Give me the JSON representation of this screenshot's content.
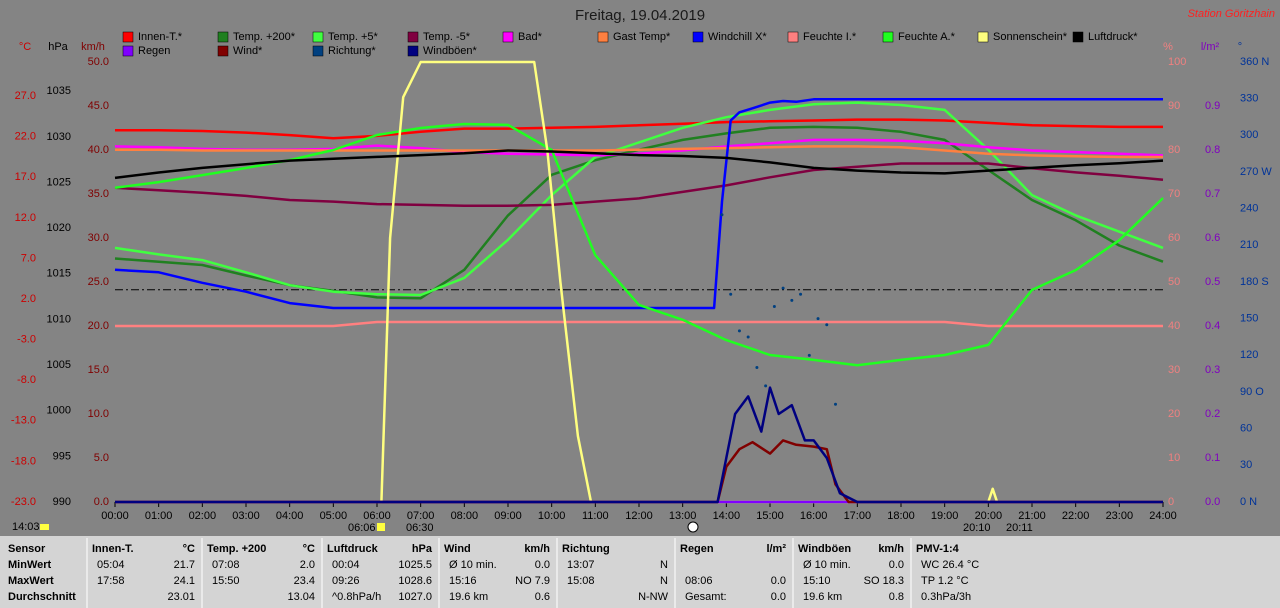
{
  "chart_data": {
    "type": "line",
    "title": "Freitag, 19.04.2019",
    "station": "Station Göritzhain",
    "xlim": [
      0,
      24
    ],
    "xticks": [
      {
        "value": 0,
        "label": "00:00"
      },
      {
        "value": 1,
        "label": "01:00"
      },
      {
        "value": 2,
        "label": "02:00"
      },
      {
        "value": 3,
        "label": "03:00"
      },
      {
        "value": 4,
        "label": "04:00"
      },
      {
        "value": 5,
        "label": "05:00"
      },
      {
        "value": 6,
        "label": "06:00"
      },
      {
        "value": 7,
        "label": "07:00"
      },
      {
        "value": 8,
        "label": "08:00"
      },
      {
        "value": 9,
        "label": "09:00"
      },
      {
        "value": 10,
        "label": "10:00"
      },
      {
        "value": 11,
        "label": "11:00"
      },
      {
        "value": 12,
        "label": "12:00"
      },
      {
        "value": 13,
        "label": "13:00"
      },
      {
        "value": 14,
        "label": "14:00"
      },
      {
        "value": 15,
        "label": "15:00"
      },
      {
        "value": 16,
        "label": "16:00"
      },
      {
        "value": 17,
        "label": "17:00"
      },
      {
        "value": 18,
        "label": "18:00"
      },
      {
        "value": 19,
        "label": "19:00"
      },
      {
        "value": 20,
        "label": "20:00"
      },
      {
        "value": 21,
        "label": "21:00"
      },
      {
        "value": 22,
        "label": "22:00"
      },
      {
        "value": 23,
        "label": "23:00"
      },
      {
        "value": 24,
        "label": "24:00"
      }
    ],
    "x": [
      0,
      1,
      2,
      3,
      4,
      5,
      6,
      7,
      8,
      9,
      10,
      11,
      12,
      13,
      14,
      15,
      16,
      17,
      18,
      19,
      20,
      21,
      22,
      23,
      24
    ],
    "axes": [
      {
        "unit": "°C",
        "side": "left",
        "color": "#cc0000",
        "ylim": [
          -23,
          31.2
        ],
        "yticks": [
          {
            "value": 27,
            "label": "27.0"
          },
          {
            "value": 22,
            "label": "22.0"
          },
          {
            "value": 17,
            "label": "17.0"
          },
          {
            "value": 12,
            "label": "12.0"
          },
          {
            "value": 7,
            "label": "7.0"
          },
          {
            "value": 2,
            "label": "2.0"
          },
          {
            "value": -3,
            "label": "-3.0"
          },
          {
            "value": -8,
            "label": "-8.0"
          },
          {
            "value": -13,
            "label": "-13.0"
          },
          {
            "value": -18,
            "label": "-18.0"
          },
          {
            "value": -23,
            "label": "-23.0"
          }
        ]
      },
      {
        "unit": "hPa",
        "side": "left",
        "color": "#000000",
        "ylim": [
          990,
          1038.2
        ],
        "yticks": [
          1035,
          1030,
          1025,
          1020,
          1015,
          1010,
          1005,
          1000,
          995,
          990
        ]
      },
      {
        "unit": "km/h",
        "side": "left",
        "color": "#800000",
        "ylim": [
          0,
          50
        ],
        "yticks": [
          {
            "value": 50,
            "label": "50.0"
          },
          {
            "value": 45,
            "label": "45.0"
          },
          {
            "value": 40,
            "label": "40.0"
          },
          {
            "value": 35,
            "label": "35.0"
          },
          {
            "value": 30,
            "label": "30.0"
          },
          {
            "value": 25,
            "label": "25.0"
          },
          {
            "value": 20,
            "label": "20.0"
          },
          {
            "value": 15,
            "label": "15.0"
          },
          {
            "value": 10,
            "label": "10.0"
          },
          {
            "value": 5,
            "label": "5.0"
          },
          {
            "value": 0,
            "label": "0.0"
          }
        ]
      },
      {
        "unit": "%",
        "side": "right",
        "color": "#f08080",
        "ylim": [
          0,
          100
        ],
        "yticks": [
          100,
          90,
          80,
          70,
          60,
          50,
          40,
          30,
          20,
          10,
          0
        ]
      },
      {
        "unit": "l/m²",
        "side": "right",
        "color": "#8000c0",
        "ylim": [
          0,
          1
        ],
        "yticks": [
          0.9,
          0.8,
          0.7,
          0.6,
          0.5,
          0.4,
          0.3,
          0.2,
          0.1,
          {
            "value": 0,
            "label": "0.0"
          }
        ]
      },
      {
        "unit": "°",
        "side": "right",
        "color": "#003399",
        "ylim": [
          0,
          360
        ],
        "yticks": [
          {
            "value": 360,
            "label": "360 N"
          },
          330,
          300,
          {
            "value": 270,
            "label": "270 W"
          },
          240,
          210,
          {
            "value": 180,
            "label": "180 S"
          },
          150,
          120,
          {
            "value": 90,
            "label": "90 O"
          },
          60,
          30,
          {
            "value": 0,
            "label": "0 N"
          }
        ]
      }
    ],
    "reference_line": {
      "axis": 1,
      "value": 1013.25
    },
    "series": [
      {
        "name": "Innen-T.*",
        "color": "#ff0000",
        "axis": 0,
        "values": [
          22.8,
          22.8,
          22.7,
          22.5,
          22.2,
          21.8,
          22.1,
          22.6,
          23.0,
          23.0,
          23.1,
          23.2,
          23.4,
          23.6,
          23.8,
          23.9,
          24.0,
          24.1,
          24.1,
          24.0,
          23.7,
          23.4,
          23.3,
          23.2,
          23.2
        ]
      },
      {
        "name": "Temp. +200*",
        "color": "#208020",
        "axis": 0,
        "values": [
          7.0,
          6.6,
          6.2,
          4.9,
          3.7,
          3.0,
          2.2,
          2.1,
          5.6,
          12.3,
          17.3,
          19.1,
          20.4,
          21.6,
          22.4,
          23.1,
          23.2,
          23.1,
          22.6,
          21.6,
          17.9,
          14.2,
          11.7,
          8.6,
          6.6
        ]
      },
      {
        "name": "Temp. +5*",
        "color": "#40ff40",
        "axis": 0,
        "values": [
          8.3,
          7.5,
          6.8,
          5.3,
          3.7,
          2.9,
          2.6,
          2.5,
          4.6,
          9.3,
          14.8,
          19.5,
          21.3,
          23.1,
          24.4,
          25.3,
          26.0,
          26.2,
          25.9,
          25.3,
          20.4,
          14.8,
          12.3,
          10.3,
          8.3
        ]
      },
      {
        "name": "Temp. -5*",
        "color": "#800040",
        "axis": 0,
        "values": [
          15.7,
          15.4,
          15.1,
          14.7,
          14.2,
          14.0,
          13.7,
          13.6,
          13.5,
          13.5,
          13.6,
          14.0,
          14.4,
          15.2,
          16.0,
          17.0,
          17.9,
          18.3,
          18.7,
          18.7,
          18.7,
          18.1,
          17.6,
          17.2,
          16.7
        ]
      },
      {
        "name": "Bad*",
        "color": "#ff00ff",
        "axis": 0,
        "values": [
          20.8,
          20.7,
          20.5,
          20.4,
          20.4,
          20.5,
          20.9,
          20.6,
          20.1,
          19.9,
          19.8,
          19.7,
          19.9,
          20.3,
          20.8,
          21.2,
          21.6,
          21.6,
          21.5,
          21.2,
          20.7,
          20.3,
          20.1,
          19.9,
          19.7
        ]
      },
      {
        "name": "Gast Temp*",
        "color": "#ff8040",
        "axis": 0,
        "values": [
          20.4,
          20.4,
          20.3,
          20.3,
          20.3,
          20.3,
          20.3,
          20.3,
          20.3,
          20.3,
          20.3,
          20.3,
          20.4,
          20.5,
          20.6,
          20.7,
          20.8,
          20.8,
          20.7,
          20.3,
          19.9,
          19.7,
          19.6,
          19.5,
          19.5
        ]
      },
      {
        "name": "Windchill X*",
        "color": "#0000ff",
        "axis": 0,
        "x": [
          0,
          1,
          2,
          3,
          4,
          5,
          13.72,
          13.9,
          14.1,
          14.3,
          14.6,
          15,
          15.3,
          15.6,
          16,
          24
        ],
        "values": [
          5.6,
          5.3,
          4.0,
          2.9,
          1.5,
          0.9,
          0.9,
          14,
          24.0,
          25.0,
          25.5,
          26.2,
          26.4,
          26.3,
          26.6,
          26.6
        ]
      },
      {
        "name": "Feuchte I.*",
        "color": "#ff8080",
        "axis": 3,
        "values": [
          40,
          40,
          40,
          40,
          40,
          40,
          40.9,
          40.9,
          40.9,
          40.9,
          40.9,
          40.9,
          40.9,
          40.9,
          40.9,
          40.9,
          40.9,
          40.9,
          40.9,
          40.9,
          40,
          40,
          40,
          40,
          40
        ]
      },
      {
        "name": "Feuchte A.*",
        "color": "#20ff20",
        "axis": 3,
        "values": [
          71.4,
          72.7,
          74.3,
          75.9,
          77.7,
          80,
          83.4,
          85,
          85.9,
          85.7,
          80,
          56.1,
          44.8,
          41.4,
          36.8,
          33.4,
          32.3,
          31.1,
          32.3,
          33.4,
          35.7,
          48.2,
          52.7,
          59.5,
          69.1
        ]
      },
      {
        "name": "Sonnenschein*",
        "color": "#ffff80",
        "axis": 3,
        "x": [
          0,
          6.1,
          6.3,
          6.6,
          7.0,
          9.6,
          9.9,
          10.2,
          10.6,
          10.9,
          20.0,
          20.1,
          20.2,
          24
        ],
        "values": [
          0,
          0,
          60,
          92,
          100,
          100,
          80,
          50,
          15,
          0,
          0,
          3,
          0,
          0
        ]
      },
      {
        "name": "Luftdruck*",
        "color": "#000000",
        "axis": 1,
        "values": [
          1025.5,
          1026.1,
          1026.6,
          1027.0,
          1027.4,
          1027.6,
          1027.8,
          1028.0,
          1028.2,
          1028.5,
          1028.4,
          1028.2,
          1028.0,
          1027.9,
          1027.7,
          1027.2,
          1026.6,
          1026.3,
          1026.1,
          1026.0,
          1026.3,
          1026.6,
          1026.9,
          1027.1,
          1027.4
        ]
      },
      {
        "name": "Regen",
        "color": "#8000ff",
        "axis": 4,
        "x": [
          0,
          24
        ],
        "values": [
          0,
          0
        ]
      },
      {
        "name": "Wind*",
        "color": "#800000",
        "axis": 2,
        "x": [
          0,
          13.8,
          14,
          14.3,
          14.6,
          15,
          15.3,
          15.6,
          16,
          16.3,
          16.5,
          16.8,
          24
        ],
        "values": [
          0,
          0,
          4.0,
          6.0,
          6.8,
          5.5,
          7.0,
          6.5,
          6.3,
          6.0,
          2.0,
          0,
          0
        ]
      },
      {
        "name": "Richtung*",
        "color": "#004080",
        "axis": 5,
        "style": "dots",
        "x": [
          13.9,
          14.1,
          14.3,
          14.5,
          14.7,
          14.9,
          15.1,
          15.3,
          15.5,
          15.7,
          15.9,
          16.1,
          16.3,
          16.5
        ],
        "values": [
          235,
          170,
          140,
          135,
          110,
          95,
          160,
          175,
          165,
          170,
          120,
          150,
          145,
          80
        ]
      },
      {
        "name": "Windböen*",
        "color": "#000080",
        "axis": 2,
        "x": [
          0,
          13.8,
          14,
          14.2,
          14.5,
          14.8,
          15,
          15.2,
          15.5,
          15.8,
          16,
          16.3,
          16.6,
          17,
          24
        ],
        "values": [
          0,
          0,
          5,
          10,
          12,
          8,
          13,
          10,
          11,
          7,
          7,
          5,
          1,
          0,
          0
        ]
      }
    ],
    "annotations": [
      "14:03",
      "06:06",
      "06:30",
      "20:10",
      "20:11"
    ]
  },
  "stats": {
    "labels": [
      "Sensor",
      "MinWert",
      "MaxWert",
      "Durchschnitt"
    ],
    "columns": [
      {
        "title": "Innen-T.",
        "unit": "°C",
        "rows": [
          [
            "05:04",
            "21.7"
          ],
          [
            "17:58",
            "24.1"
          ],
          [
            null,
            "23.01"
          ]
        ]
      },
      {
        "title": "Temp. +200",
        "unit": "°C",
        "rows": [
          [
            "07:08",
            "2.0"
          ],
          [
            "15:50",
            "23.4"
          ],
          [
            null,
            "13.04"
          ]
        ]
      },
      {
        "title": "Luftdruck",
        "unit": "hPa",
        "rows": [
          [
            "00:04",
            "1025.5"
          ],
          [
            "09:26",
            "1028.6"
          ],
          [
            "^0.8hPa/h",
            "1027.0"
          ]
        ]
      },
      {
        "title": "Wind",
        "unit": "km/h",
        "rows": [
          [
            "Ø 10 min.",
            "0.0"
          ],
          [
            "15:16",
            "NO 7.9"
          ],
          [
            "19.6 km",
            "0.6"
          ]
        ]
      },
      {
        "title": "Richtung",
        "rows": [
          [
            "13:07",
            "N"
          ],
          [
            "15:08",
            "N"
          ],
          [
            null,
            "N-NW"
          ]
        ]
      },
      {
        "title": "Regen",
        "unit": "l/m²",
        "rows": [
          [
            null,
            null
          ],
          [
            "08:06",
            "0.0"
          ],
          [
            "Gesamt:",
            "0.0"
          ]
        ]
      },
      {
        "title": "Windböen",
        "unit": "km/h",
        "rows": [
          [
            "Ø 10 min.",
            "0.0"
          ],
          [
            "15:10",
            "SO 18.3"
          ],
          [
            "19.6 km",
            "0.8"
          ]
        ]
      },
      {
        "title": "PMV-1:4",
        "rows": [
          [
            "WC 26.4 °C"
          ],
          [
            "TP 1.2 °C"
          ],
          [
            "0.3hPa/3h"
          ]
        ]
      }
    ]
  }
}
